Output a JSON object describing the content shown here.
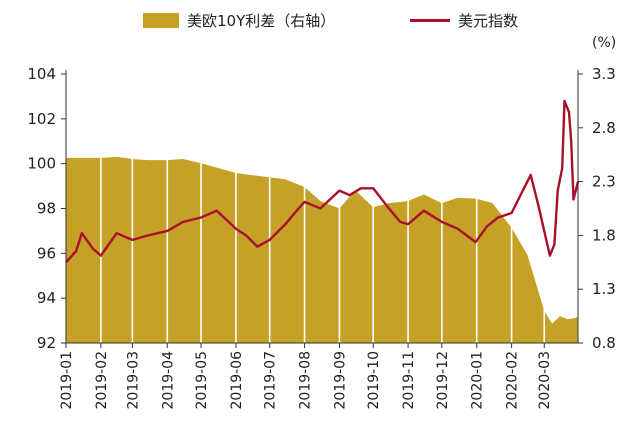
{
  "chart_data": {
    "type": "bar+line",
    "legend": [
      {
        "name": "美欧10Y利差（右轴）",
        "kind": "area",
        "color": "#C6A128"
      },
      {
        "name": "美元指数",
        "kind": "line",
        "color": "#A8102B"
      }
    ],
    "right_unit": "(%)",
    "left_axis": {
      "min": 92,
      "max": 104,
      "ticks": [
        "92",
        "94",
        "96",
        "98",
        "100",
        "102",
        "104"
      ]
    },
    "right_axis": {
      "min": 0.8,
      "max": 3.3,
      "ticks": [
        "0.8",
        "1.3",
        "1.8",
        "2.3",
        "2.8",
        "3.3"
      ]
    },
    "x_axis": {
      "ticks": [
        "2019-01",
        "2019-02",
        "2019-03",
        "2019-04",
        "2019-05",
        "2019-06",
        "2019-07",
        "2019-08",
        "2019-09",
        "2019-10",
        "2019-11",
        "2019-12",
        "2020-01",
        "2020-02",
        "2020-03"
      ]
    },
    "spread_right_axis": [
      [
        "2019-01-01",
        2.52
      ],
      [
        "2019-01-15",
        2.52
      ],
      [
        "2019-02-01",
        2.52
      ],
      [
        "2019-02-15",
        2.53
      ],
      [
        "2019-03-01",
        2.51
      ],
      [
        "2019-03-15",
        2.5
      ],
      [
        "2019-04-01",
        2.5
      ],
      [
        "2019-04-15",
        2.51
      ],
      [
        "2019-05-01",
        2.47
      ],
      [
        "2019-05-15",
        2.43
      ],
      [
        "2019-06-01",
        2.38
      ],
      [
        "2019-06-15",
        2.36
      ],
      [
        "2019-07-01",
        2.34
      ],
      [
        "2019-07-15",
        2.32
      ],
      [
        "2019-08-01",
        2.25
      ],
      [
        "2019-08-15",
        2.12
      ],
      [
        "2019-09-01",
        2.05
      ],
      [
        "2019-09-15",
        2.22
      ],
      [
        "2019-10-01",
        2.06
      ],
      [
        "2019-10-15",
        2.1
      ],
      [
        "2019-11-01",
        2.12
      ],
      [
        "2019-11-15",
        2.18
      ],
      [
        "2019-12-01",
        2.1
      ],
      [
        "2019-12-15",
        2.15
      ],
      [
        "2020-01-01",
        2.14
      ],
      [
        "2020-01-15",
        2.1
      ],
      [
        "2020-02-01",
        1.87
      ],
      [
        "2020-02-15",
        1.62
      ],
      [
        "2020-03-01",
        1.1
      ],
      [
        "2020-03-08",
        0.98
      ],
      [
        "2020-03-15",
        1.05
      ],
      [
        "2020-03-22",
        1.02
      ],
      [
        "2020-03-31",
        1.04
      ]
    ],
    "dxy_left_axis": [
      [
        "2019-01-01",
        95.6
      ],
      [
        "2019-01-10",
        96.1
      ],
      [
        "2019-01-15",
        96.9
      ],
      [
        "2019-01-25",
        96.2
      ],
      [
        "2019-02-01",
        95.9
      ],
      [
        "2019-02-15",
        96.9
      ],
      [
        "2019-03-01",
        96.6
      ],
      [
        "2019-03-15",
        96.8
      ],
      [
        "2019-04-01",
        97.0
      ],
      [
        "2019-04-15",
        97.4
      ],
      [
        "2019-05-01",
        97.6
      ],
      [
        "2019-05-15",
        97.9
      ],
      [
        "2019-06-01",
        97.1
      ],
      [
        "2019-06-10",
        96.8
      ],
      [
        "2019-06-20",
        96.3
      ],
      [
        "2019-07-01",
        96.6
      ],
      [
        "2019-07-15",
        97.3
      ],
      [
        "2019-07-25",
        97.9
      ],
      [
        "2019-08-01",
        98.3
      ],
      [
        "2019-08-15",
        98.0
      ],
      [
        "2019-09-01",
        98.8
      ],
      [
        "2019-09-10",
        98.6
      ],
      [
        "2019-09-20",
        98.9
      ],
      [
        "2019-10-01",
        98.9
      ],
      [
        "2019-10-15",
        98.0
      ],
      [
        "2019-10-25",
        97.4
      ],
      [
        "2019-11-01",
        97.3
      ],
      [
        "2019-11-15",
        97.9
      ],
      [
        "2019-12-01",
        97.4
      ],
      [
        "2019-12-15",
        97.1
      ],
      [
        "2019-12-31",
        96.5
      ],
      [
        "2020-01-10",
        97.2
      ],
      [
        "2020-01-20",
        97.6
      ],
      [
        "2020-02-01",
        97.8
      ],
      [
        "2020-02-10",
        98.7
      ],
      [
        "2020-02-18",
        99.5
      ],
      [
        "2020-02-25",
        98.1
      ],
      [
        "2020-03-01",
        97.0
      ],
      [
        "2020-03-06",
        95.9
      ],
      [
        "2020-03-10",
        96.4
      ],
      [
        "2020-03-13",
        98.8
      ],
      [
        "2020-03-17",
        99.8
      ],
      [
        "2020-03-19",
        102.8
      ],
      [
        "2020-03-23",
        102.3
      ],
      [
        "2020-03-25",
        101.0
      ],
      [
        "2020-03-27",
        98.4
      ],
      [
        "2020-03-31",
        99.2
      ]
    ]
  }
}
